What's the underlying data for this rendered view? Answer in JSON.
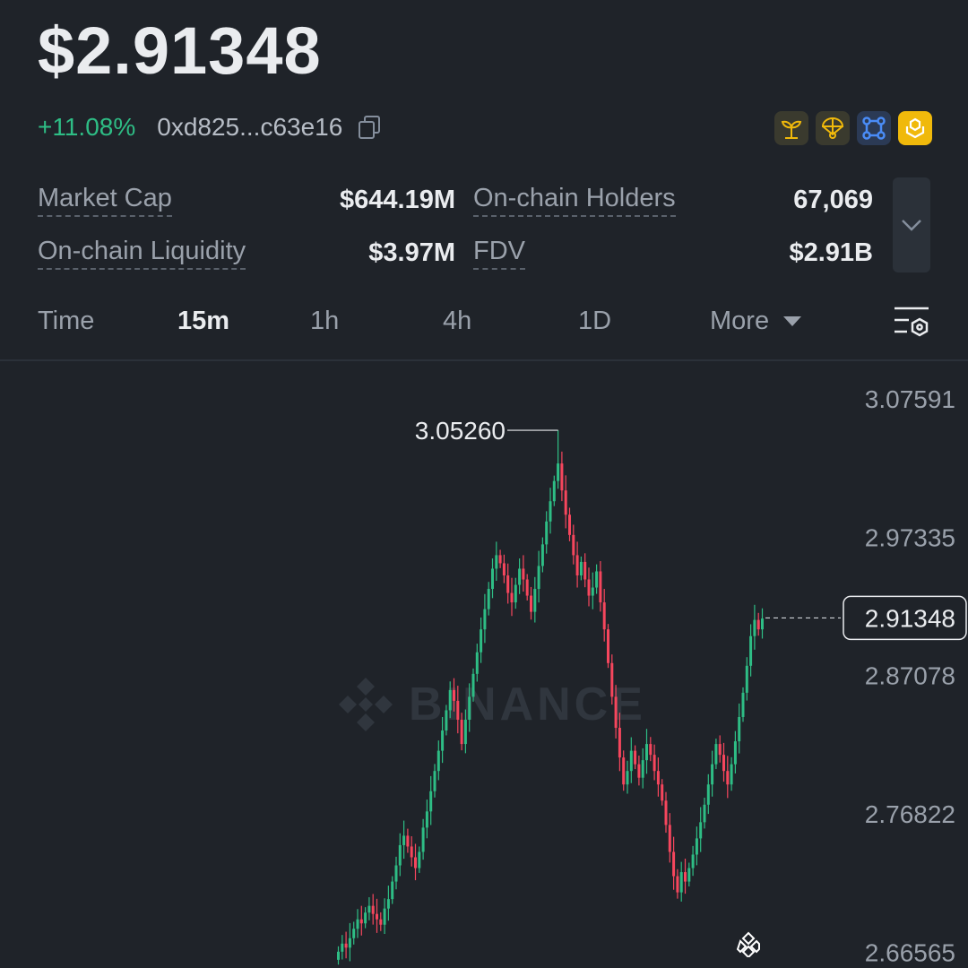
{
  "header": {
    "price": "$2.91348",
    "change": "+11.08%",
    "address": "0xd825...c63e16",
    "change_color": "#2ebd85"
  },
  "badges": [
    {
      "name": "sprout-icon",
      "bg": "#3a3a2e"
    },
    {
      "name": "parachute-icon",
      "bg": "#3a3a2e"
    },
    {
      "name": "network-icon",
      "bg": "#2b3a55"
    },
    {
      "name": "bnb-icon",
      "bg": "#f0b90b"
    }
  ],
  "stats": {
    "market_cap_label": "Market Cap",
    "market_cap_value": "$644.19M",
    "holders_label": "On-chain Holders",
    "holders_value": "67,069",
    "liquidity_label": "On-chain Liquidity",
    "liquidity_value": "$3.97M",
    "fdv_label": "FDV",
    "fdv_value": "$2.91B"
  },
  "tabs": {
    "time": "Time",
    "m15": "15m",
    "h1": "1h",
    "h4": "4h",
    "d1": "1D",
    "more": "More",
    "active": "15m"
  },
  "chart": {
    "y_ticks": [
      "3.07591",
      "2.97335",
      "2.87078",
      "2.76822",
      "2.66565"
    ],
    "high_label": "3.05260",
    "current_label": "2.91348",
    "watermark": "BINANCE",
    "up_color": "#2ebd85",
    "down_color": "#f6465d"
  },
  "chart_data": {
    "type": "candlestick",
    "ylim": [
      2.656,
      3.09
    ],
    "y_ticks": [
      3.07591,
      2.97335,
      2.87078,
      2.76822,
      2.66565
    ],
    "high": 3.0526,
    "last": 2.91348,
    "closes": [
      2.666,
      2.672,
      2.669,
      2.676,
      2.683,
      2.69,
      2.687,
      2.695,
      2.7,
      2.694,
      2.69,
      2.686,
      2.698,
      2.705,
      2.718,
      2.73,
      2.745,
      2.752,
      2.744,
      2.736,
      2.728,
      2.74,
      2.758,
      2.77,
      2.785,
      2.8,
      2.815,
      2.83,
      2.845,
      2.86,
      2.852,
      2.838,
      2.82,
      2.838,
      2.855,
      2.872,
      2.888,
      2.905,
      2.92,
      2.935,
      2.95,
      2.96,
      2.954,
      2.945,
      2.932,
      2.925,
      2.938,
      2.95,
      2.942,
      2.93,
      2.918,
      2.935,
      2.952,
      2.968,
      2.985,
      3.0,
      3.015,
      3.028,
      3.008,
      2.99,
      2.975,
      2.96,
      2.945,
      2.955,
      2.942,
      2.93,
      2.936,
      2.948,
      2.925,
      2.905,
      2.88,
      2.855,
      2.832,
      2.81,
      2.79,
      2.8,
      2.815,
      2.805,
      2.795,
      2.808,
      2.82,
      2.812,
      2.8,
      2.79,
      2.778,
      2.76,
      2.74,
      2.722,
      2.71,
      2.725,
      2.718,
      2.728,
      2.738,
      2.75,
      2.762,
      2.775,
      2.79,
      2.805,
      2.82,
      2.812,
      2.8,
      2.79,
      2.805,
      2.822,
      2.84,
      2.858,
      2.878,
      2.9,
      2.912,
      2.905,
      2.913
    ]
  }
}
